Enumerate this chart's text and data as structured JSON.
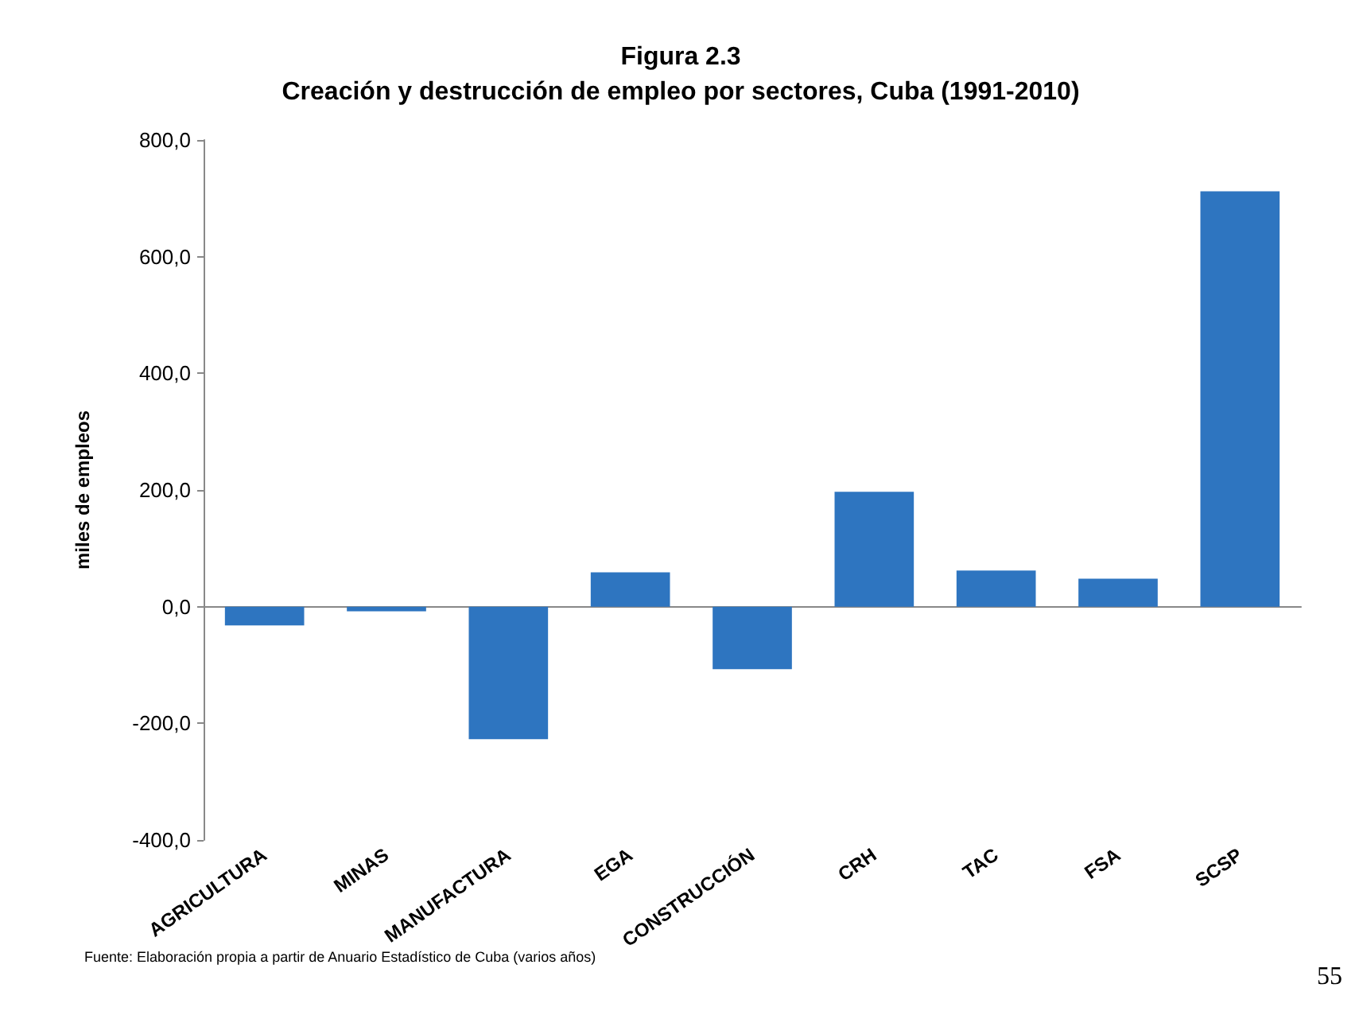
{
  "chart_data": {
    "type": "bar",
    "title": "Figura 2.3\nCreación y destrucción de empleo por sectores, Cuba (1991-2010)",
    "ylabel": "miles de empleos",
    "categories": [
      "AGRICULTURA",
      "MINAS",
      "MANUFACTURA",
      "EGA",
      "CONSTRUCCIÓN",
      "CRH",
      "TAC",
      "FSA",
      "SCSP"
    ],
    "values": [
      -32,
      -8,
      -227,
      59,
      -107,
      197,
      62,
      48,
      712
    ],
    "color": "#2e75c0",
    "ylim": [
      -400,
      800
    ],
    "yticks": [
      {
        "value": -400,
        "label": "-400,0"
      },
      {
        "value": -200,
        "label": "-200,0"
      },
      {
        "value": 0,
        "label": "0,0"
      },
      {
        "value": 200,
        "label": "200,0"
      },
      {
        "value": 400,
        "label": "400,0"
      },
      {
        "value": 600,
        "label": "600,0"
      },
      {
        "value": 800,
        "label": "800,0"
      }
    ],
    "annotations": [
      "Fuente: Elaboración propia a partir de Anuario Estadístico de Cuba (varios años)",
      "55"
    ]
  }
}
